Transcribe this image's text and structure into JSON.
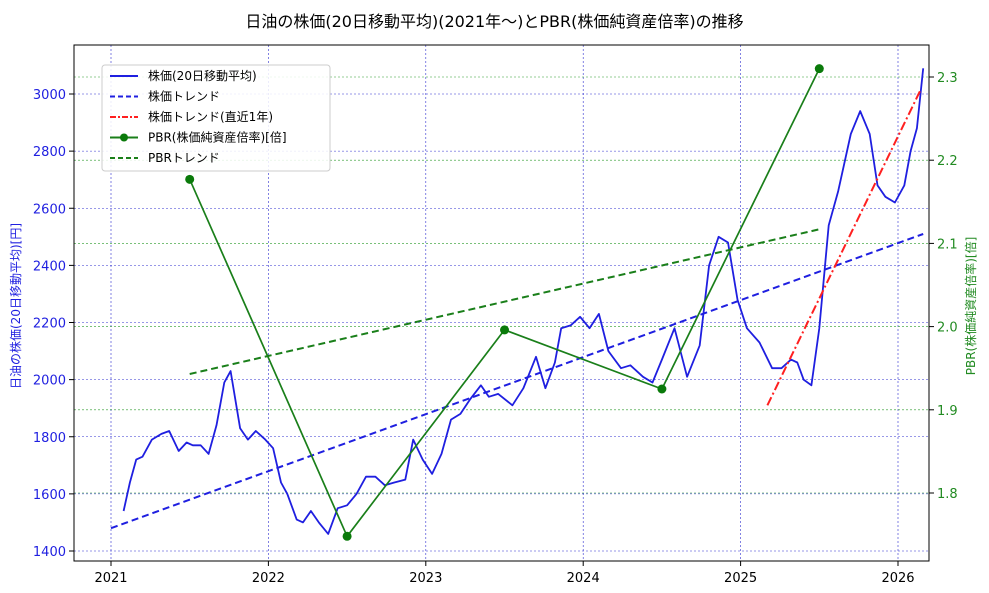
{
  "chart_data": {
    "type": "line",
    "title": "日油の株価(20日移動平均)(2021年〜)とPBR(株価純資産倍率)の推移",
    "xlabel": "",
    "ylabel_left": "日油の株価(20日移動平均)[円]",
    "ylabel_right": "PBR(株価純資産倍率)[倍]",
    "x_ticks": [
      "2021",
      "2022",
      "2023",
      "2024",
      "2025",
      "2026"
    ],
    "y_left_ticks": [
      "1400",
      "1600",
      "1800",
      "2000",
      "2200",
      "2400",
      "2600",
      "2800",
      "3000"
    ],
    "y_right_ticks": [
      "1.8",
      "1.9",
      "2.0",
      "2.1",
      "2.2",
      "2.3"
    ],
    "ylim_left": [
      1380,
      3140
    ],
    "ylim_right": [
      1.72,
      2.33
    ],
    "grid": true,
    "legend_position": "upper left",
    "series": [
      {
        "name": "株価(20日移動平均)",
        "axis": "left",
        "style": "solid",
        "color": "#1f1fe0",
        "points": [
          [
            2021.08,
            1540
          ],
          [
            2021.12,
            1640
          ],
          [
            2021.16,
            1720
          ],
          [
            2021.2,
            1730
          ],
          [
            2021.26,
            1790
          ],
          [
            2021.32,
            1810
          ],
          [
            2021.37,
            1820
          ],
          [
            2021.43,
            1750
          ],
          [
            2021.48,
            1780
          ],
          [
            2021.52,
            1770
          ],
          [
            2021.57,
            1770
          ],
          [
            2021.62,
            1740
          ],
          [
            2021.67,
            1840
          ],
          [
            2021.72,
            1990
          ],
          [
            2021.76,
            2030
          ],
          [
            2021.82,
            1830
          ],
          [
            2021.87,
            1790
          ],
          [
            2021.92,
            1820
          ],
          [
            2021.98,
            1790
          ],
          [
            2022.03,
            1760
          ],
          [
            2022.08,
            1640
          ],
          [
            2022.12,
            1600
          ],
          [
            2022.18,
            1510
          ],
          [
            2022.22,
            1500
          ],
          [
            2022.27,
            1540
          ],
          [
            2022.32,
            1500
          ],
          [
            2022.38,
            1460
          ],
          [
            2022.44,
            1550
          ],
          [
            2022.5,
            1560
          ],
          [
            2022.56,
            1600
          ],
          [
            2022.62,
            1660
          ],
          [
            2022.68,
            1660
          ],
          [
            2022.74,
            1630
          ],
          [
            2022.8,
            1640
          ],
          [
            2022.87,
            1650
          ],
          [
            2022.92,
            1790
          ],
          [
            2022.98,
            1720
          ],
          [
            2023.04,
            1670
          ],
          [
            2023.1,
            1740
          ],
          [
            2023.16,
            1860
          ],
          [
            2023.22,
            1880
          ],
          [
            2023.28,
            1930
          ],
          [
            2023.35,
            1980
          ],
          [
            2023.4,
            1940
          ],
          [
            2023.46,
            1950
          ],
          [
            2023.55,
            1910
          ],
          [
            2023.62,
            1970
          ],
          [
            2023.7,
            2080
          ],
          [
            2023.76,
            1970
          ],
          [
            2023.82,
            2060
          ],
          [
            2023.86,
            2180
          ],
          [
            2023.92,
            2190
          ],
          [
            2023.98,
            2220
          ],
          [
            2024.04,
            2180
          ],
          [
            2024.1,
            2230
          ],
          [
            2024.16,
            2100
          ],
          [
            2024.24,
            2040
          ],
          [
            2024.3,
            2050
          ],
          [
            2024.38,
            2010
          ],
          [
            2024.44,
            1990
          ],
          [
            2024.5,
            2070
          ],
          [
            2024.58,
            2180
          ],
          [
            2024.66,
            2010
          ],
          [
            2024.74,
            2120
          ],
          [
            2024.8,
            2400
          ],
          [
            2024.86,
            2500
          ],
          [
            2024.92,
            2480
          ],
          [
            2024.98,
            2280
          ],
          [
            2025.04,
            2180
          ],
          [
            2025.12,
            2130
          ],
          [
            2025.2,
            2040
          ],
          [
            2025.26,
            2040
          ],
          [
            2025.32,
            2070
          ],
          [
            2025.36,
            2060
          ],
          [
            2025.4,
            2000
          ],
          [
            2025.45,
            1980
          ],
          [
            2025.5,
            2180
          ],
          [
            2025.56,
            2540
          ],
          [
            2025.62,
            2660
          ],
          [
            2025.7,
            2860
          ],
          [
            2025.76,
            2940
          ],
          [
            2025.82,
            2860
          ],
          [
            2025.87,
            2680
          ],
          [
            2025.92,
            2640
          ],
          [
            2025.98,
            2620
          ],
          [
            2026.04,
            2680
          ],
          [
            2026.08,
            2800
          ],
          [
            2026.12,
            2880
          ],
          [
            2026.16,
            3090
          ]
        ]
      },
      {
        "name": "株価トレンド",
        "axis": "left",
        "style": "dashed",
        "color": "#1f1fe0",
        "points": [
          [
            2021.0,
            1480
          ],
          [
            2026.16,
            2510
          ]
        ]
      },
      {
        "name": "株価トレンド(直近1年)",
        "axis": "left",
        "style": "dashdot",
        "color": "#ff2020",
        "points": [
          [
            2025.17,
            1910
          ],
          [
            2026.14,
            3010
          ]
        ]
      },
      {
        "name": "PBR(株価純資産倍率)[倍]",
        "axis": "right",
        "style": "solid-marker",
        "color": "#1a7f1a",
        "points": [
          [
            2021.5,
            2.177
          ],
          [
            2022.5,
            1.748
          ],
          [
            2023.5,
            1.996
          ],
          [
            2024.5,
            1.925
          ],
          [
            2025.5,
            2.31
          ]
        ]
      },
      {
        "name": "PBRトレンド",
        "axis": "right",
        "style": "dashed",
        "color": "#1a7f1a",
        "points": [
          [
            2021.5,
            1.943
          ],
          [
            2025.5,
            2.117
          ]
        ]
      }
    ]
  }
}
